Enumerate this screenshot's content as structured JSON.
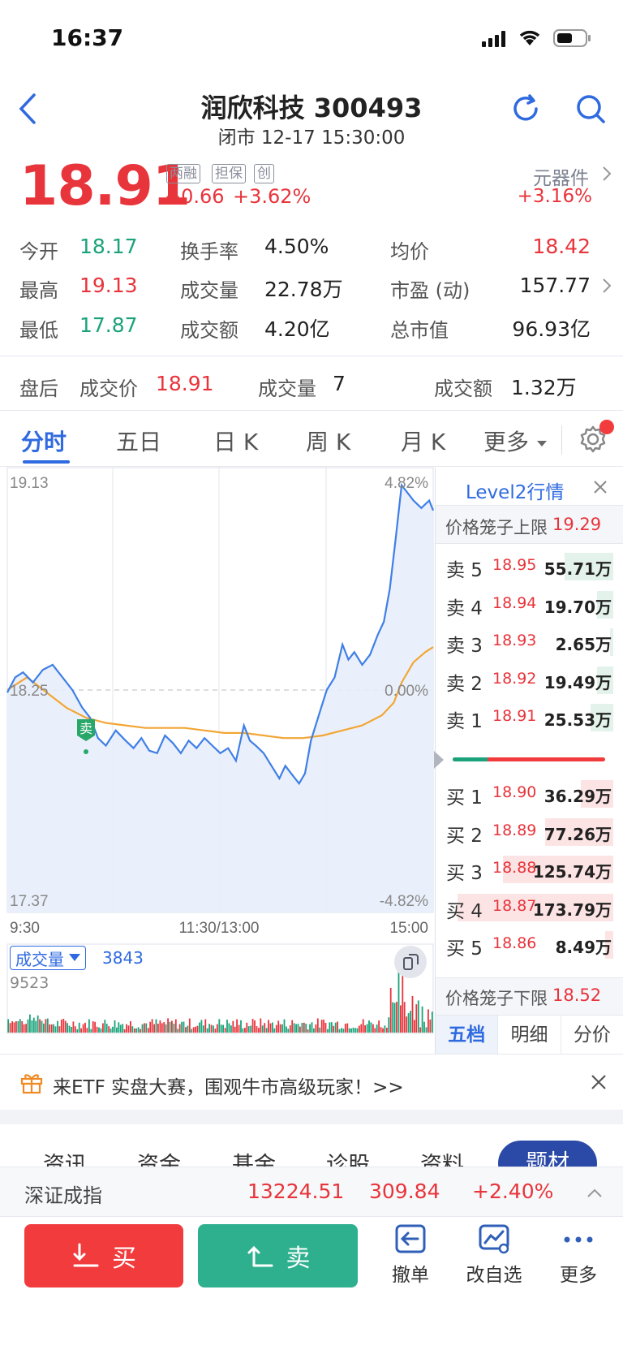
{
  "status_bar": {
    "time": "16:37"
  },
  "header": {
    "title": "润欣科技 300493",
    "subtitle": "闭市 12-17 15:30:00"
  },
  "quote": {
    "price": "18.91",
    "badges": [
      "两融",
      "担保",
      "创"
    ],
    "change": "+0.66",
    "change_pct": "+3.62%",
    "sector": "元器件",
    "sector_change": "+3.16%"
  },
  "stats": {
    "open_label": "今开",
    "open": "18.17",
    "high_label": "最高",
    "high": "19.13",
    "low_label": "最低",
    "low": "17.87",
    "turnover_label": "换手率",
    "turnover": "4.50%",
    "volume_label": "成交量",
    "volume": "22.78万",
    "amount_label": "成交额",
    "amount": "4.20亿",
    "avg_label": "均价",
    "avg": "18.42",
    "pe_label": "市盈 (动)",
    "pe": "157.77",
    "mktcap_label": "总市值",
    "mktcap": "96.93亿"
  },
  "after_hours": {
    "label": "盘后",
    "price_label": "成交价",
    "price": "18.91",
    "volume_label": "成交量",
    "volume": "7",
    "amount_label": "成交额",
    "amount": "1.32万"
  },
  "tabs": [
    "分时",
    "五日",
    "日 K",
    "周 K",
    "月 K",
    "更多"
  ],
  "chart_data": {
    "type": "line",
    "y_left_top": "19.13",
    "y_left_bottom": "17.37",
    "y_left_mid": "18.25",
    "y_right_top": "4.82%",
    "y_right_mid": "0.00%",
    "y_right_bottom": "-4.82%",
    "x_labels": [
      "9:30",
      "11:30/13:00",
      "15:00"
    ],
    "ylim": [
      17.37,
      19.13
    ],
    "prev_close": 18.25,
    "price_series": [
      [
        0,
        18.24
      ],
      [
        4,
        18.3
      ],
      [
        8,
        18.32
      ],
      [
        13,
        18.28
      ],
      [
        18,
        18.33
      ],
      [
        23,
        18.35
      ],
      [
        28,
        18.3
      ],
      [
        33,
        18.25
      ],
      [
        38,
        18.18
      ],
      [
        42,
        18.14
      ],
      [
        46,
        18.06
      ],
      [
        50,
        18.03
      ],
      [
        55,
        18.09
      ],
      [
        60,
        18.05
      ],
      [
        64,
        18.02
      ],
      [
        68,
        18.06
      ],
      [
        72,
        18.01
      ],
      [
        76,
        18.0
      ],
      [
        80,
        18.07
      ],
      [
        84,
        18.04
      ],
      [
        88,
        18.0
      ],
      [
        92,
        18.05
      ],
      [
        96,
        18.02
      ],
      [
        100,
        18.06
      ],
      [
        104,
        18.03
      ],
      [
        108,
        18.0
      ],
      [
        112,
        18.02
      ],
      [
        116,
        17.97
      ],
      [
        120,
        18.11
      ],
      [
        123,
        18.05
      ],
      [
        126,
        18.03
      ],
      [
        130,
        18.0
      ],
      [
        134,
        17.95
      ],
      [
        138,
        17.9
      ],
      [
        141,
        17.95
      ],
      [
        145,
        17.91
      ],
      [
        148,
        17.88
      ],
      [
        151,
        17.92
      ],
      [
        154,
        18.05
      ],
      [
        158,
        18.15
      ],
      [
        162,
        18.25
      ],
      [
        166,
        18.3
      ],
      [
        170,
        18.43
      ],
      [
        173,
        18.37
      ],
      [
        176,
        18.4
      ],
      [
        180,
        18.35
      ],
      [
        184,
        18.39
      ],
      [
        188,
        18.47
      ],
      [
        191,
        18.52
      ],
      [
        194,
        18.65
      ],
      [
        197,
        18.85
      ],
      [
        200,
        19.06
      ],
      [
        203,
        19.03
      ],
      [
        206,
        19.0
      ],
      [
        210,
        18.97
      ],
      [
        214,
        19.0
      ],
      [
        216,
        18.96
      ]
    ],
    "avg_series": [
      [
        0,
        18.25
      ],
      [
        10,
        18.3
      ],
      [
        20,
        18.24
      ],
      [
        30,
        18.18
      ],
      [
        40,
        18.14
      ],
      [
        50,
        18.12
      ],
      [
        60,
        18.11
      ],
      [
        70,
        18.1
      ],
      [
        80,
        18.1
      ],
      [
        90,
        18.1
      ],
      [
        100,
        18.09
      ],
      [
        110,
        18.08
      ],
      [
        120,
        18.08
      ],
      [
        130,
        18.07
      ],
      [
        140,
        18.06
      ],
      [
        150,
        18.06
      ],
      [
        160,
        18.07
      ],
      [
        170,
        18.09
      ],
      [
        180,
        18.11
      ],
      [
        190,
        18.15
      ],
      [
        196,
        18.2
      ],
      [
        200,
        18.28
      ],
      [
        206,
        18.36
      ],
      [
        212,
        18.4
      ],
      [
        216,
        18.42
      ]
    ],
    "trade_marker": "卖",
    "volume_label": "成交量",
    "volume_value": "3843",
    "volume_max": "9523"
  },
  "level2": {
    "title": "Level2行情",
    "upper_limit_label": "价格笼子上限",
    "upper_limit": "19.29",
    "lower_limit_label": "价格笼子下限",
    "lower_limit": "18.52",
    "sells": [
      {
        "label": "卖 5",
        "price": "18.95",
        "vol": "55.71万",
        "fill": 0.3
      },
      {
        "label": "卖 4",
        "price": "18.94",
        "vol": "19.70万",
        "fill": 0.1
      },
      {
        "label": "卖 3",
        "price": "18.93",
        "vol": "2.65万",
        "fill": 0.02
      },
      {
        "label": "卖 2",
        "price": "18.92",
        "vol": "19.49万",
        "fill": 0.1
      },
      {
        "label": "卖 1",
        "price": "18.91",
        "vol": "25.53万",
        "fill": 0.14
      }
    ],
    "buys": [
      {
        "label": "买 1",
        "price": "18.90",
        "vol": "36.29万",
        "fill": 0.2
      },
      {
        "label": "买 2",
        "price": "18.89",
        "vol": "77.26万",
        "fill": 0.42
      },
      {
        "label": "买 3",
        "price": "18.88",
        "vol": "125.74万",
        "fill": 0.68
      },
      {
        "label": "买 4",
        "price": "18.87",
        "vol": "173.79万",
        "fill": 0.96
      },
      {
        "label": "买 5",
        "price": "18.86",
        "vol": "8.49万",
        "fill": 0.05
      }
    ],
    "tabs": [
      "五档",
      "明细",
      "分价"
    ],
    "buy_sell_ratio": 0.23
  },
  "banner": {
    "text": "来ETF 实盘大赛，围观牛市高级玩家！>>"
  },
  "section_tabs": [
    "资讯",
    "资金",
    "基金",
    "诊股",
    "资料",
    "题材"
  ],
  "index": {
    "name": "深证成指",
    "value": "13224.51",
    "change": "309.84",
    "change_pct": "+2.40%"
  },
  "actions": {
    "buy": "买",
    "sell": "卖",
    "cancel": "撤单",
    "edit_watch": "改自选",
    "more": "更多"
  },
  "colors": {
    "up": "#e8343b",
    "down": "#1aa37a",
    "accent": "#2f6ae0",
    "avg_line": "#f2a636",
    "price_line": "#3f7fe6"
  }
}
